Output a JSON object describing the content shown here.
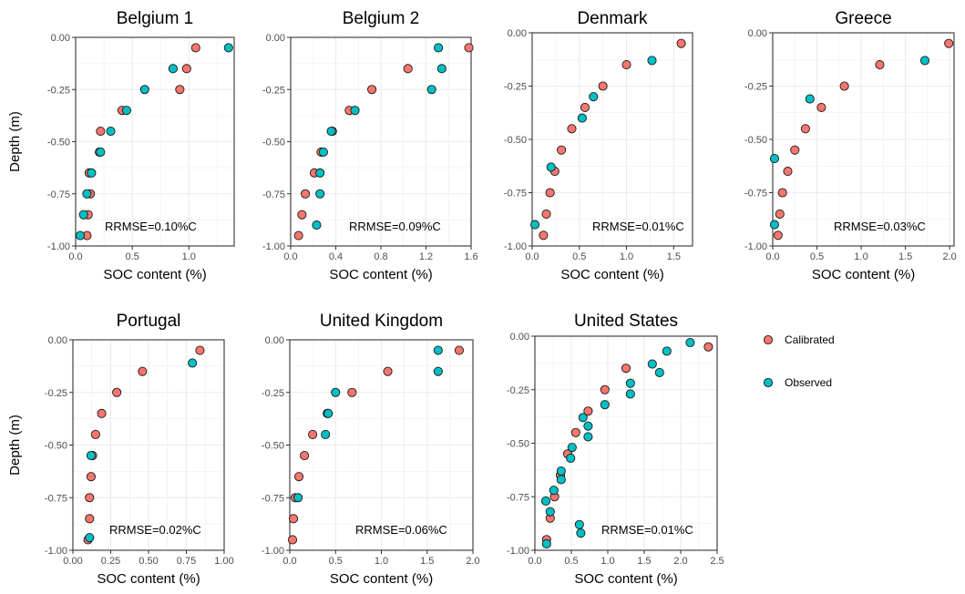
{
  "colors": {
    "calibrated": "#F8766D",
    "observed": "#00BFC4",
    "grid": "#EBEBEB",
    "frame": "#333333"
  },
  "chart_data": [
    {
      "type": "scatter",
      "title": "Belgium 1",
      "xlabel": "SOC content (%)",
      "ylabel": "Depth (m)",
      "xlim": [
        0,
        1.4
      ],
      "ylim": [
        -1.0,
        0.0
      ],
      "xticks": [
        0.0,
        0.5,
        1.0
      ],
      "xtick_labels": [
        "0.0",
        "0.5",
        "1.0"
      ],
      "yticks": [
        0.0,
        -0.25,
        -0.5,
        -0.75,
        -1.0
      ],
      "ytick_labels": [
        "0.00",
        "-0.25",
        "-0.50",
        "-0.75",
        "-1.00"
      ],
      "annotation": "RRMSE=0.10%C",
      "series": [
        {
          "name": "Calibrated",
          "points": [
            [
              1.06,
              -0.05
            ],
            [
              0.98,
              -0.15
            ],
            [
              0.92,
              -0.25
            ],
            [
              0.41,
              -0.35
            ],
            [
              0.22,
              -0.45
            ],
            [
              0.21,
              -0.55
            ],
            [
              0.12,
              -0.65
            ],
            [
              0.13,
              -0.75
            ],
            [
              0.11,
              -0.85
            ],
            [
              0.1,
              -0.95
            ]
          ]
        },
        {
          "name": "Observed",
          "points": [
            [
              1.35,
              -0.05
            ],
            [
              0.86,
              -0.15
            ],
            [
              0.61,
              -0.25
            ],
            [
              0.45,
              -0.35
            ],
            [
              0.31,
              -0.45
            ],
            [
              0.22,
              -0.55
            ],
            [
              0.14,
              -0.65
            ],
            [
              0.1,
              -0.75
            ],
            [
              0.07,
              -0.85
            ],
            [
              0.04,
              -0.95
            ]
          ]
        }
      ]
    },
    {
      "type": "scatter",
      "title": "Belgium 2",
      "xlabel": "SOC content (%)",
      "ylabel": "",
      "xlim": [
        0,
        1.6
      ],
      "ylim": [
        -1.0,
        0.0
      ],
      "xticks": [
        0.0,
        0.4,
        0.8,
        1.2,
        1.6
      ],
      "xtick_labels": [
        "0.0",
        "0.4",
        "0.8",
        "1.2",
        "1.6"
      ],
      "yticks": [
        0.0,
        -0.25,
        -0.5,
        -0.75,
        -1.0
      ],
      "ytick_labels": [
        "0.00",
        "-0.25",
        "-0.50",
        "-0.75",
        "-1.00"
      ],
      "annotation": "RRMSE=0.09%C",
      "series": [
        {
          "name": "Calibrated",
          "points": [
            [
              1.58,
              -0.05
            ],
            [
              1.04,
              -0.15
            ],
            [
              0.72,
              -0.25
            ],
            [
              0.52,
              -0.35
            ],
            [
              0.37,
              -0.45
            ],
            [
              0.27,
              -0.55
            ],
            [
              0.21,
              -0.65
            ],
            [
              0.13,
              -0.75
            ],
            [
              0.1,
              -0.85
            ],
            [
              0.07,
              -0.95
            ]
          ]
        },
        {
          "name": "Observed",
          "points": [
            [
              1.31,
              -0.05
            ],
            [
              1.34,
              -0.15
            ],
            [
              1.25,
              -0.25
            ],
            [
              0.57,
              -0.35
            ],
            [
              0.36,
              -0.45
            ],
            [
              0.29,
              -0.55
            ],
            [
              0.26,
              -0.65
            ],
            [
              0.26,
              -0.75
            ],
            [
              0.23,
              -0.9
            ]
          ]
        }
      ]
    },
    {
      "type": "scatter",
      "title": "Denmark",
      "xlabel": "SOC content (%)",
      "ylabel": "",
      "xlim": [
        0,
        1.7
      ],
      "ylim": [
        -1.0,
        0.0
      ],
      "xticks": [
        0.0,
        0.5,
        1.0,
        1.5
      ],
      "xtick_labels": [
        "0.0",
        "0.5",
        "1.0",
        "1.5"
      ],
      "yticks": [
        0.0,
        -0.25,
        -0.5,
        -0.75,
        -1.0
      ],
      "ytick_labels": [
        "0.00",
        "-0.25",
        "-0.50",
        "-0.75",
        "-1.00"
      ],
      "annotation": "RRMSE=0.01%C",
      "series": [
        {
          "name": "Calibrated",
          "points": [
            [
              1.58,
              -0.05
            ],
            [
              1.0,
              -0.15
            ],
            [
              0.75,
              -0.25
            ],
            [
              0.56,
              -0.35
            ],
            [
              0.42,
              -0.45
            ],
            [
              0.31,
              -0.55
            ],
            [
              0.24,
              -0.65
            ],
            [
              0.19,
              -0.75
            ],
            [
              0.15,
              -0.85
            ],
            [
              0.12,
              -0.95
            ]
          ]
        },
        {
          "name": "Observed",
          "points": [
            [
              1.27,
              -0.13
            ],
            [
              0.65,
              -0.3
            ],
            [
              0.53,
              -0.4
            ],
            [
              0.2,
              -0.63
            ],
            [
              0.03,
              -0.9
            ]
          ]
        }
      ]
    },
    {
      "type": "scatter",
      "title": "Greece",
      "xlabel": "SOC content (%)",
      "ylabel": "",
      "xlim": [
        0,
        2.05
      ],
      "ylim": [
        -1.0,
        0.0
      ],
      "xticks": [
        0.0,
        0.5,
        1.0,
        1.5,
        2.0
      ],
      "xtick_labels": [
        "0.0",
        "0.5",
        "1.0",
        "1.5",
        "2.0"
      ],
      "yticks": [
        0.0,
        -0.25,
        -0.5,
        -0.75,
        -1.0
      ],
      "ytick_labels": [
        "0.00",
        "-0.25",
        "-0.50",
        "-0.75",
        "-1.00"
      ],
      "annotation": "RRMSE=0.03%C",
      "series": [
        {
          "name": "Calibrated",
          "points": [
            [
              1.99,
              -0.05
            ],
            [
              1.21,
              -0.15
            ],
            [
              0.81,
              -0.25
            ],
            [
              0.55,
              -0.35
            ],
            [
              0.37,
              -0.45
            ],
            [
              0.25,
              -0.55
            ],
            [
              0.17,
              -0.65
            ],
            [
              0.11,
              -0.75
            ],
            [
              0.08,
              -0.85
            ],
            [
              0.06,
              -0.95
            ]
          ]
        },
        {
          "name": "Observed",
          "points": [
            [
              1.72,
              -0.13
            ],
            [
              0.42,
              -0.31
            ],
            [
              0.02,
              -0.59
            ],
            [
              0.02,
              -0.9
            ]
          ]
        }
      ]
    },
    {
      "type": "scatter",
      "title": "Portugal",
      "xlabel": "SOC content (%)",
      "ylabel": "Depth (m)",
      "xlim": [
        0,
        1.0
      ],
      "ylim": [
        -1.0,
        0.0
      ],
      "xticks": [
        0.0,
        0.25,
        0.5,
        0.75,
        1.0
      ],
      "xtick_labels": [
        "0.00",
        "0.25",
        "0.50",
        "0.75",
        "1.00"
      ],
      "yticks": [
        0.0,
        -0.25,
        -0.5,
        -0.75,
        -1.0
      ],
      "ytick_labels": [
        "0.00",
        "-0.25",
        "-0.50",
        "-0.75",
        "-1.00"
      ],
      "annotation": "RRMSE=0.02%C",
      "series": [
        {
          "name": "Calibrated",
          "points": [
            [
              0.84,
              -0.05
            ],
            [
              0.46,
              -0.15
            ],
            [
              0.29,
              -0.25
            ],
            [
              0.19,
              -0.35
            ],
            [
              0.15,
              -0.45
            ],
            [
              0.13,
              -0.55
            ],
            [
              0.12,
              -0.65
            ],
            [
              0.11,
              -0.75
            ],
            [
              0.11,
              -0.85
            ],
            [
              0.1,
              -0.95
            ]
          ]
        },
        {
          "name": "Observed",
          "points": [
            [
              0.79,
              -0.11
            ],
            [
              0.12,
              -0.55
            ],
            [
              0.11,
              -0.94
            ]
          ]
        }
      ]
    },
    {
      "type": "scatter",
      "title": "United Kingdom",
      "xlabel": "SOC content (%)",
      "ylabel": "",
      "xlim": [
        0,
        2.0
      ],
      "ylim": [
        -1.0,
        0.0
      ],
      "xticks": [
        0.0,
        0.5,
        1.0,
        1.5,
        2.0
      ],
      "xtick_labels": [
        "0.0",
        "0.5",
        "1.0",
        "1.5",
        "2.0"
      ],
      "yticks": [
        0.0,
        -0.25,
        -0.5,
        -0.75,
        -1.0
      ],
      "ytick_labels": [
        "0.00",
        "-0.25",
        "-0.50",
        "-0.75",
        "-1.00"
      ],
      "annotation": "RRMSE=0.06%C",
      "series": [
        {
          "name": "Calibrated",
          "points": [
            [
              1.85,
              -0.05
            ],
            [
              1.07,
              -0.15
            ],
            [
              0.68,
              -0.25
            ],
            [
              0.41,
              -0.35
            ],
            [
              0.25,
              -0.45
            ],
            [
              0.16,
              -0.55
            ],
            [
              0.1,
              -0.65
            ],
            [
              0.06,
              -0.75
            ],
            [
              0.04,
              -0.85
            ],
            [
              0.03,
              -0.95
            ]
          ]
        },
        {
          "name": "Observed",
          "points": [
            [
              1.62,
              -0.05
            ],
            [
              1.62,
              -0.15
            ],
            [
              0.5,
              -0.25
            ],
            [
              0.42,
              -0.35
            ],
            [
              0.39,
              -0.45
            ],
            [
              0.09,
              -0.75
            ]
          ]
        }
      ]
    },
    {
      "type": "scatter",
      "title": "United States",
      "xlabel": "SOC content (%)",
      "ylabel": "",
      "xlim": [
        0,
        2.5
      ],
      "ylim": [
        -1.0,
        0.0
      ],
      "xticks": [
        0.0,
        0.5,
        1.0,
        1.5,
        2.0,
        2.5
      ],
      "xtick_labels": [
        "0.0",
        "0.5",
        "1.0",
        "1.5",
        "2.0",
        "2.5"
      ],
      "yticks": [
        0.0,
        -0.25,
        -0.5,
        -0.75,
        -1.0
      ],
      "ytick_labels": [
        "0.00",
        "-0.25",
        "-0.50",
        "-0.75",
        "-1.00"
      ],
      "annotation": "RRMSE=0.01%C",
      "series": [
        {
          "name": "Calibrated",
          "points": [
            [
              2.38,
              -0.05
            ],
            [
              1.25,
              -0.15
            ],
            [
              0.96,
              -0.25
            ],
            [
              0.73,
              -0.35
            ],
            [
              0.56,
              -0.45
            ],
            [
              0.45,
              -0.55
            ],
            [
              0.35,
              -0.65
            ],
            [
              0.27,
              -0.75
            ],
            [
              0.21,
              -0.85
            ],
            [
              0.16,
              -0.95
            ]
          ]
        },
        {
          "name": "Observed",
          "points": [
            [
              2.13,
              -0.03
            ],
            [
              1.81,
              -0.07
            ],
            [
              1.61,
              -0.13
            ],
            [
              1.71,
              -0.17
            ],
            [
              1.31,
              -0.22
            ],
            [
              1.31,
              -0.27
            ],
            [
              0.96,
              -0.32
            ],
            [
              0.66,
              -0.38
            ],
            [
              0.73,
              -0.42
            ],
            [
              0.73,
              -0.47
            ],
            [
              0.51,
              -0.52
            ],
            [
              0.49,
              -0.57
            ],
            [
              0.36,
              -0.63
            ],
            [
              0.36,
              -0.67
            ],
            [
              0.26,
              -0.72
            ],
            [
              0.15,
              -0.77
            ],
            [
              0.21,
              -0.82
            ],
            [
              0.61,
              -0.88
            ],
            [
              0.63,
              -0.92
            ],
            [
              0.16,
              -0.97
            ]
          ]
        }
      ]
    }
  ],
  "legend": [
    {
      "label": "Calibrated",
      "series": "calibrated"
    },
    {
      "label": "Observed",
      "series": "observed"
    }
  ]
}
